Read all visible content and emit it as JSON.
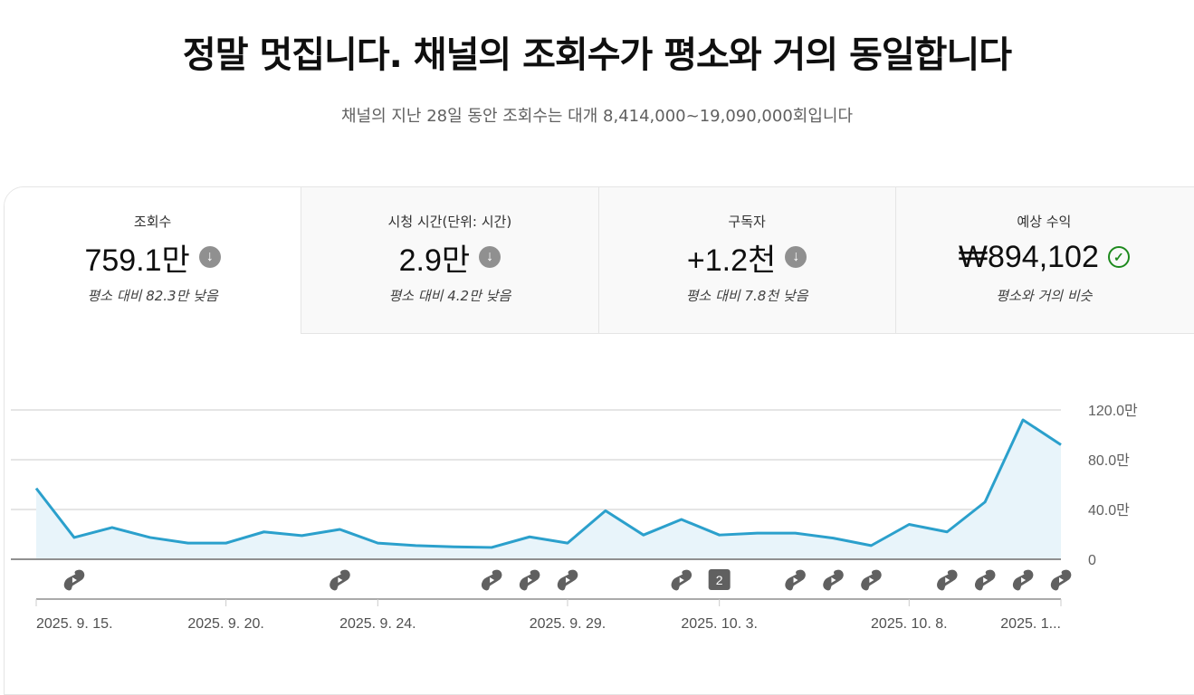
{
  "header": {
    "title": "정말 멋집니다. 채널의 조회수가 평소와 거의 동일합니다",
    "subtitle": "채널의 지난 28일 동안 조회수는 대개 8,414,000~19,090,000회입니다"
  },
  "tabs": [
    {
      "label": "조회수",
      "value": "759.1만",
      "comparison": "평소 대비 82.3만 낮음",
      "icon": "arrow-down-circle-icon",
      "selected": true
    },
    {
      "label": "시청 시간(단위: 시간)",
      "value": "2.9만",
      "comparison": "평소 대비 4.2만 낮음",
      "icon": "arrow-down-circle-icon",
      "selected": false
    },
    {
      "label": "구독자",
      "value": "+1.2천",
      "comparison": "평소 대비 7.8천 낮음",
      "icon": "arrow-down-circle-icon",
      "selected": false
    },
    {
      "label": "예상 수익",
      "value": "₩894,102",
      "comparison": "평소와 거의 비슷",
      "icon": "check-circle-icon",
      "selected": false
    }
  ],
  "colors": {
    "line": "#2ba0cc",
    "fill": "#e8f4fa",
    "marker": "#606060",
    "ok": "#1e8a1e"
  },
  "chart_data": {
    "type": "area",
    "title": "조회수",
    "x": [
      "9.15",
      "9.16",
      "9.17",
      "9.18",
      "9.19",
      "9.20",
      "9.21",
      "9.22",
      "9.23",
      "9.24",
      "9.25",
      "9.26",
      "9.27",
      "9.28",
      "9.29",
      "9.30",
      "10.1",
      "10.2",
      "10.3",
      "10.4",
      "10.5",
      "10.6",
      "10.7",
      "10.8",
      "10.9",
      "10.10",
      "10.11",
      "10.12"
    ],
    "values": [
      57,
      17.5,
      25.5,
      17.5,
      13,
      13,
      22,
      19,
      24,
      13,
      11,
      10,
      9.5,
      18,
      13,
      39,
      19.5,
      32,
      19.5,
      21,
      21,
      17,
      11,
      28,
      22,
      46,
      112,
      92
    ],
    "unit": "만",
    "ylim": [
      0,
      120
    ],
    "yticks": [
      "0",
      "40.0만",
      "80.0만",
      "120.0만"
    ],
    "ytick_values": [
      0,
      40,
      80,
      120
    ],
    "xtick_labels": [
      {
        "index": 0,
        "label": "2025. 9. 15."
      },
      {
        "index": 5,
        "label": "2025. 9. 20."
      },
      {
        "index": 9,
        "label": "2025. 9. 24."
      },
      {
        "index": 14,
        "label": "2025. 9. 29."
      },
      {
        "index": 18,
        "label": "2025. 10. 3."
      },
      {
        "index": 23,
        "label": "2025. 10. 8."
      },
      {
        "index": 27,
        "label": "2025. 1..."
      }
    ],
    "shorts_markers": [
      1,
      8,
      12,
      13,
      14,
      17,
      20,
      21,
      22,
      24,
      25,
      26,
      27
    ],
    "count_markers": [
      {
        "index": 18,
        "label": "2"
      }
    ],
    "grid": true,
    "yaxis_position": "right"
  }
}
